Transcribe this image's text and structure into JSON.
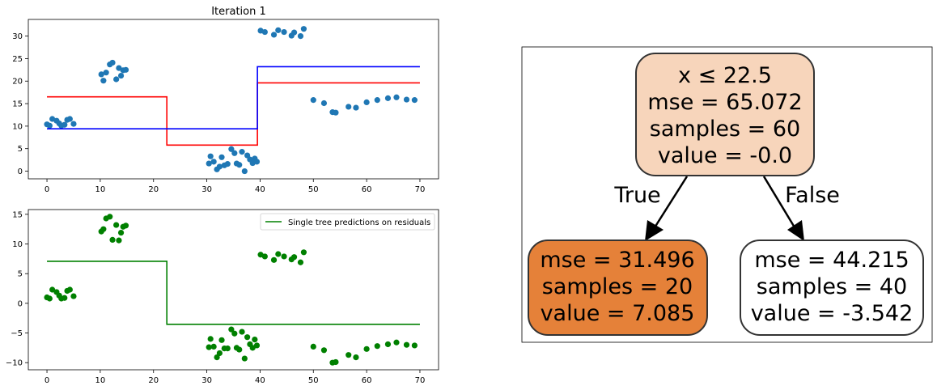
{
  "chart_data": [
    {
      "type": "scatter",
      "title": "Iteration 1",
      "xlabel": "",
      "ylabel": "",
      "xlim": [
        -3.5,
        73.5
      ],
      "ylim": [
        -1.7,
        33.7
      ],
      "xticks": [
        0,
        10,
        20,
        30,
        40,
        50,
        60,
        70
      ],
      "yticks": [
        0,
        5,
        10,
        15,
        20,
        25,
        30
      ],
      "grid": false,
      "colors": {
        "points": "#1f77b4",
        "red_line": "#ff0000",
        "blue_line": "#0000ff"
      },
      "points": {
        "x": [
          0,
          0.5,
          1,
          1.8,
          2.3,
          2.7,
          3.3,
          3.8,
          4.3,
          5,
          10.2,
          10.6,
          11.1,
          11.8,
          12.3,
          13,
          13.5,
          13.9,
          14.3,
          14.8,
          30.4,
          30.7,
          31.3,
          31.9,
          32.4,
          32.8,
          33.3,
          33.9,
          34.6,
          35.2,
          35.6,
          36.1,
          36.6,
          37.1,
          37.6,
          38.1,
          38.6,
          39,
          39.4,
          40.1,
          40.9,
          42.6,
          43.4,
          44.5,
          45.9,
          46.4,
          47.6,
          48.2,
          50,
          52,
          53.6,
          54.2,
          56.6,
          58,
          60,
          62,
          64,
          65.6,
          67.5,
          69
        ],
        "y": [
          10.4,
          10.1,
          11.6,
          11.2,
          10.6,
          10.1,
          10.3,
          11.4,
          11.6,
          10.5,
          21.5,
          20.1,
          21.9,
          23.7,
          24.1,
          20.4,
          22.9,
          21.2,
          22.4,
          22.5,
          1.7,
          3.3,
          2.1,
          0.4,
          1,
          3.1,
          1.3,
          1.6,
          4.9,
          4,
          1.7,
          1.4,
          4.3,
          0,
          3.5,
          2.6,
          1.8,
          2.8,
          2.1,
          31.2,
          30.9,
          30.3,
          31.3,
          30.9,
          30.1,
          30.8,
          30,
          31.6,
          15.8,
          15.1,
          13.1,
          13,
          14.3,
          14.1,
          15.3,
          15.8,
          16.2,
          16.4,
          15.9,
          15.8
        ]
      },
      "red_line": {
        "x": [
          0,
          22.5,
          22.5,
          39.5,
          39.5,
          70
        ],
        "y": [
          16.5,
          16.5,
          5.8,
          5.8,
          19.6,
          19.6
        ]
      },
      "blue_line": {
        "x": [
          0,
          39.5,
          39.5,
          70
        ],
        "y": [
          9.4,
          9.4,
          23.2,
          23.2
        ]
      }
    },
    {
      "type": "scatter",
      "title": "",
      "xlabel": "",
      "ylabel": "",
      "xlim": [
        -3.5,
        73.5
      ],
      "ylim": [
        -11.2,
        15.8
      ],
      "xticks": [
        0,
        10,
        20,
        30,
        40,
        50,
        60,
        70
      ],
      "yticks": [
        -10,
        -5,
        0,
        5,
        10,
        15
      ],
      "grid": false,
      "legend": {
        "placement": "top-right",
        "entries": [
          "Single tree predictions on residuals"
        ]
      },
      "colors": {
        "points": "#008000",
        "line": "#008000"
      },
      "points": {
        "x": [
          0,
          0.5,
          1,
          1.8,
          2.3,
          2.7,
          3.3,
          3.8,
          4.3,
          5,
          10.2,
          10.6,
          11.1,
          11.8,
          12.3,
          13,
          13.5,
          13.9,
          14.3,
          14.8,
          30.4,
          30.7,
          31.3,
          31.9,
          32.4,
          32.8,
          33.3,
          33.9,
          34.6,
          35.2,
          35.6,
          36.1,
          36.6,
          37.1,
          37.6,
          38.1,
          38.6,
          39,
          39.4,
          40.1,
          40.9,
          42.6,
          43.4,
          44.5,
          45.9,
          46.4,
          47.6,
          48.2,
          50,
          52,
          53.6,
          54.2,
          56.6,
          58,
          60,
          62,
          64,
          65.6,
          67.5,
          69
        ],
        "y": [
          1,
          0.8,
          2.3,
          1.9,
          1.3,
          0.8,
          0.9,
          2.1,
          2.3,
          1.2,
          12.1,
          12.5,
          14.3,
          14.6,
          10.7,
          13.2,
          10.6,
          11.9,
          12.9,
          13.1,
          -7.4,
          -6,
          -7.3,
          -9.1,
          -8.4,
          -6.2,
          -7.6,
          -7.6,
          -4.4,
          -5.1,
          -7.5,
          -7.8,
          -4.8,
          -9.3,
          -5.7,
          -6.9,
          -7.5,
          -6.1,
          -7.1,
          8.2,
          7.9,
          7.3,
          8.3,
          7.9,
          7.4,
          7.8,
          6.9,
          8.6,
          -7.3,
          -7.9,
          -10,
          -9.9,
          -8.7,
          -9.1,
          -7.7,
          -7.2,
          -6.9,
          -6.6,
          -7,
          -7.1
        ]
      },
      "line": {
        "name": "Single tree predictions on residuals",
        "x": [
          0,
          22.5,
          22.5,
          70
        ],
        "y": [
          7.085,
          7.085,
          -3.542,
          -3.542
        ]
      }
    }
  ],
  "tree": {
    "root": {
      "lines": [
        "x ≤ 22.5",
        "mse = 65.072",
        "samples = 60",
        "value = -0.0"
      ],
      "fill": "#f7d5bb"
    },
    "left": {
      "lines": [
        "mse = 31.496",
        "samples = 20",
        "value = 7.085"
      ],
      "fill": "#e58139"
    },
    "right": {
      "lines": [
        "mse = 44.215",
        "samples = 40",
        "value = -3.542"
      ],
      "fill": "#ffffff"
    },
    "edge_true": "True",
    "edge_false": "False"
  }
}
